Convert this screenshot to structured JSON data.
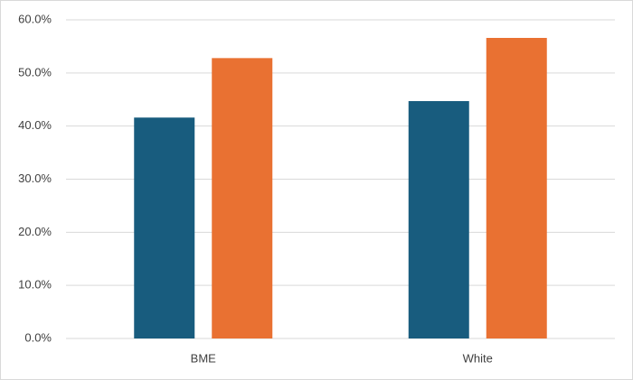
{
  "chart_data": {
    "type": "bar",
    "categories": [
      "BME",
      "White"
    ],
    "series": [
      {
        "color": "#185c7e",
        "values": [
          41.6,
          44.7
        ]
      },
      {
        "color": "#e97132",
        "values": [
          52.8,
          56.6
        ]
      }
    ],
    "ylim": [
      0,
      60
    ],
    "yticks": [
      {
        "value": 0,
        "label": "0.0%"
      },
      {
        "value": 10,
        "label": "10.0%"
      },
      {
        "value": 20,
        "label": "20.0%"
      },
      {
        "value": 30,
        "label": "30.0%"
      },
      {
        "value": 40,
        "label": "40.0%"
      },
      {
        "value": 50,
        "label": "50.0%"
      },
      {
        "value": 60,
        "label": "60.0%"
      }
    ],
    "grid": true
  }
}
